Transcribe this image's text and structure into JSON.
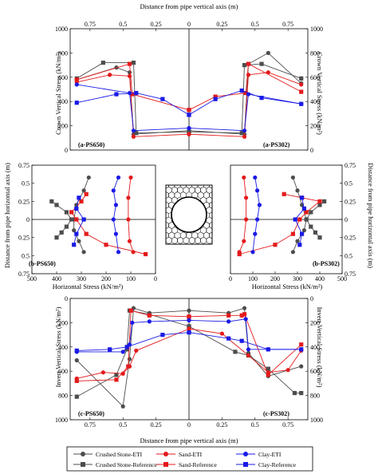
{
  "colors": {
    "Crushed Stone": "#4d4d4d",
    "Sand": "#e41a1c",
    "Clay": "#1a1ae6"
  },
  "labels": {
    "top_x": "Distance from pipe vertical axis (m)",
    "bottom_x": "Distance from pipe vertical axis (m)",
    "crown_y": "Crown Vertical Stress (kN/m²)",
    "horiz_y": "Distance from pipe horizontal axis (m)",
    "horiz_x": "Horizontal Stress (kN/m²)",
    "invert_y": "Invert Vertical Stress (kN/m²)",
    "ps650_a": "(a-PS650)",
    "ps302_a": "(a-PS302)",
    "ps650_b": "(b-PS650)",
    "ps302_b": "(b-PS302)",
    "ps650_c": "(c-PS650)",
    "ps302_c": "(c-PS302)"
  },
  "legend": [
    {
      "label": "Crushed Stone-ETI",
      "material": "Crushed Stone",
      "marker": "circle"
    },
    {
      "label": "Sand-ETI",
      "material": "Sand",
      "marker": "circle"
    },
    {
      "label": "Clay-ETI",
      "material": "Clay",
      "marker": "circle"
    },
    {
      "label": "Crushed Stone-Reference",
      "material": "Crushed Stone",
      "marker": "square"
    },
    {
      "label": "Sand-Reference",
      "material": "Sand",
      "marker": "square"
    },
    {
      "label": "Clay-Reference",
      "material": "Clay",
      "marker": "square"
    }
  ],
  "chart_data": [
    {
      "type": "line",
      "id": "crown",
      "x_ticks_left": [
        "0.75",
        "0.5",
        "0.25"
      ],
      "x_ticks_right": [
        "0.25",
        "0.5",
        "0.75"
      ],
      "y_ticks": [
        "0",
        "200",
        "400",
        "600",
        "800",
        "1000"
      ],
      "ylim": [
        0,
        1000
      ],
      "series": [
        {
          "name": "Crushed Stone-ETI",
          "left": [
            [
              0.85,
              580
            ],
            [
              0.55,
              680
            ],
            [
              0.45,
              640
            ],
            [
              0.42,
              130
            ],
            [
              0,
              160
            ]
          ],
          "right": [
            [
              0,
              160
            ],
            [
              0.42,
              130
            ],
            [
              0.45,
              710
            ],
            [
              0.6,
              800
            ],
            [
              0.85,
              550
            ]
          ]
        },
        {
          "name": "Crushed Stone-Reference",
          "left": [
            [
              0.85,
              590
            ],
            [
              0.65,
              720
            ],
            [
              0.42,
              720
            ],
            [
              0.4,
              140
            ],
            [
              0,
              150
            ]
          ],
          "right": [
            [
              0,
              150
            ],
            [
              0.4,
              140
            ],
            [
              0.42,
              700
            ],
            [
              0.55,
              710
            ],
            [
              0.85,
              590
            ]
          ]
        },
        {
          "name": "Sand-ETI",
          "left": [
            [
              0.85,
              560
            ],
            [
              0.6,
              620
            ],
            [
              0.45,
              610
            ],
            [
              0.42,
              110
            ],
            [
              0,
              130
            ]
          ],
          "right": [
            [
              0,
              130
            ],
            [
              0.42,
              110
            ],
            [
              0.45,
              620
            ],
            [
              0.6,
              640
            ],
            [
              0.85,
              540
            ]
          ]
        },
        {
          "name": "Sand-Reference",
          "left": [
            [
              0.85,
              580
            ],
            [
              0.45,
              710
            ],
            [
              0.43,
              460
            ],
            [
              0.0,
              330
            ]
          ],
          "right": [
            [
              0,
              330
            ],
            [
              0.2,
              440
            ],
            [
              0.43,
              470
            ],
            [
              0.45,
              710
            ],
            [
              0.85,
              480
            ]
          ]
        },
        {
          "name": "Clay-ETI",
          "left": [
            [
              0.85,
              540
            ],
            [
              0.45,
              470
            ],
            [
              0.42,
              160
            ],
            [
              0,
              180
            ]
          ],
          "right": [
            [
              0,
              180
            ],
            [
              0.42,
              160
            ],
            [
              0.45,
              460
            ],
            [
              0.85,
              380
            ]
          ]
        },
        {
          "name": "Clay-Reference",
          "left": [
            [
              0.85,
              390
            ],
            [
              0.55,
              460
            ],
            [
              0.4,
              470
            ],
            [
              0.2,
              420
            ],
            [
              0,
              290
            ]
          ],
          "right": [
            [
              0,
              290
            ],
            [
              0.2,
              420
            ],
            [
              0.4,
              490
            ],
            [
              0.55,
              430
            ],
            [
              0.85,
              380
            ]
          ]
        }
      ]
    },
    {
      "type": "line",
      "id": "horizontal",
      "x_ticks_left": [
        "500",
        "400",
        "300",
        "200",
        "100",
        "0"
      ],
      "x_ticks_right": [
        "0",
        "100",
        "200",
        "300",
        "400",
        "500"
      ],
      "y_ticks": [
        "0.75",
        "0.5",
        "0.25",
        "0",
        "0.25",
        "0.5",
        "0.75"
      ],
      "series": [
        {
          "name": "Crushed Stone-ETI",
          "left": [
            [
              270,
              0.58
            ],
            [
              290,
              0.4
            ],
            [
              320,
              0.2
            ],
            [
              330,
              0.0
            ],
            [
              330,
              -0.15
            ],
            [
              310,
              -0.3
            ],
            [
              290,
              -0.45
            ]
          ],
          "right": [
            [
              280,
              0.58
            ],
            [
              300,
              0.4
            ],
            [
              320,
              0.2
            ],
            [
              340,
              0.0
            ],
            [
              330,
              -0.15
            ],
            [
              300,
              -0.3
            ],
            [
              280,
              -0.45
            ]
          ]
        },
        {
          "name": "Crushed Stone-Reference",
          "left": [
            [
              420,
              0.25
            ],
            [
              400,
              0.2
            ],
            [
              360,
              0.1
            ],
            [
              340,
              0.0
            ],
            [
              360,
              -0.1
            ],
            [
              380,
              -0.18
            ],
            [
              400,
              -0.25
            ]
          ],
          "right": [
            [
              420,
              0.25
            ],
            [
              400,
              0.2
            ],
            [
              360,
              0.1
            ],
            [
              340,
              0.0
            ],
            [
              360,
              -0.1
            ],
            [
              380,
              -0.18
            ],
            [
              400,
              -0.25
            ]
          ]
        },
        {
          "name": "Sand-ETI",
          "left": [
            [
              100,
              0.58
            ],
            [
              110,
              0.3
            ],
            [
              110,
              0.0
            ],
            [
              105,
              -0.3
            ],
            [
              90,
              -0.45
            ]
          ],
          "right": [
            [
              60,
              0.58
            ],
            [
              70,
              0.3
            ],
            [
              70,
              0.0
            ],
            [
              60,
              -0.3
            ],
            [
              40,
              -0.45
            ]
          ]
        },
        {
          "name": "Sand-Reference",
          "left": [
            [
              280,
              0.35
            ],
            [
              300,
              0.25
            ],
            [
              340,
              0.1
            ],
            [
              320,
              0.0
            ],
            [
              280,
              -0.2
            ],
            [
              200,
              -0.35
            ],
            [
              40,
              -0.48
            ]
          ],
          "right": [
            [
              240,
              0.35
            ],
            [
              320,
              0.3
            ],
            [
              400,
              0.25
            ],
            [
              340,
              0.1
            ],
            [
              310,
              0.0
            ],
            [
              280,
              -0.2
            ],
            [
              200,
              -0.35
            ],
            [
              40,
              -0.48
            ]
          ]
        },
        {
          "name": "Clay-ETI",
          "left": [
            [
              150,
              0.58
            ],
            [
              170,
              0.4
            ],
            [
              160,
              0.2
            ],
            [
              170,
              0.0
            ],
            [
              160,
              -0.2
            ],
            [
              150,
              -0.45
            ]
          ],
          "right": [
            [
              110,
              0.58
            ],
            [
              120,
              0.4
            ],
            [
              130,
              0.2
            ],
            [
              120,
              0.0
            ],
            [
              110,
              -0.2
            ],
            [
              100,
              -0.45
            ]
          ]
        },
        {
          "name": "Clay-Reference",
          "left": [
            [
              310,
              0.3
            ],
            [
              320,
              0.15
            ],
            [
              290,
              0.0
            ],
            [
              320,
              -0.2
            ],
            [
              330,
              -0.35
            ]
          ],
          "right": [
            [
              320,
              0.3
            ],
            [
              330,
              0.15
            ],
            [
              290,
              0.0
            ],
            [
              320,
              -0.2
            ],
            [
              310,
              -0.35
            ]
          ]
        }
      ]
    },
    {
      "type": "line",
      "id": "invert",
      "x_ticks_left": [
        "0.75",
        "0.5",
        "0.25"
      ],
      "x_ticks_right": [
        "0.25",
        "0.5",
        "0.75"
      ],
      "y_ticks": [
        "0",
        "200",
        "400",
        "600",
        "800",
        "1000"
      ],
      "ylim": [
        1000,
        0
      ],
      "series": [
        {
          "name": "Crushed Stone-ETI",
          "left": [
            [
              0.85,
              510
            ],
            [
              0.5,
              890
            ],
            [
              0.45,
              500
            ],
            [
              0.42,
              80
            ],
            [
              0.3,
              120
            ],
            [
              0,
              100
            ]
          ],
          "right": [
            [
              0,
              100
            ],
            [
              0.3,
              120
            ],
            [
              0.42,
              80
            ],
            [
              0.45,
              450
            ],
            [
              0.6,
              640
            ],
            [
              0.85,
              560
            ]
          ]
        },
        {
          "name": "Crushed Stone-Reference",
          "left": [
            [
              0.85,
              810
            ],
            [
              0.55,
              630
            ],
            [
              0.47,
              420
            ],
            [
              0.45,
              100
            ],
            [
              0.3,
              130
            ],
            [
              0,
              230
            ]
          ],
          "right": [
            [
              0,
              230
            ],
            [
              0.35,
              440
            ],
            [
              0.45,
              470
            ],
            [
              0.6,
              580
            ],
            [
              0.8,
              780
            ],
            [
              0.85,
              780
            ]
          ]
        },
        {
          "name": "Sand-ETI",
          "left": [
            [
              0.85,
              660
            ],
            [
              0.65,
              610
            ],
            [
              0.5,
              620
            ],
            [
              0.45,
              560
            ],
            [
              0.4,
              430
            ],
            [
              0,
              250
            ]
          ],
          "right": [
            [
              0,
              250
            ],
            [
              0.25,
              290
            ],
            [
              0.45,
              470
            ],
            [
              0.6,
              610
            ],
            [
              0.75,
              590
            ],
            [
              0.85,
              430
            ]
          ]
        },
        {
          "name": "Sand-Reference",
          "left": [
            [
              0.85,
              680
            ],
            [
              0.55,
              670
            ],
            [
              0.46,
              560
            ],
            [
              0.44,
              100
            ],
            [
              0.3,
              140
            ],
            [
              0,
              150
            ]
          ],
          "right": [
            [
              0,
              150
            ],
            [
              0.3,
              140
            ],
            [
              0.4,
              140
            ],
            [
              0.42,
              130
            ],
            [
              0.6,
              630
            ],
            [
              0.85,
              380
            ]
          ]
        },
        {
          "name": "Clay-ETI",
          "left": [
            [
              0.85,
              440
            ],
            [
              0.5,
              440
            ],
            [
              0.45,
              380
            ],
            [
              0.43,
              200
            ],
            [
              0.3,
              190
            ],
            [
              0,
              180
            ]
          ],
          "right": [
            [
              0,
              180
            ],
            [
              0.3,
              190
            ],
            [
              0.43,
              170
            ],
            [
              0.45,
              420
            ],
            [
              0.6,
              420
            ],
            [
              0.85,
              420
            ]
          ]
        },
        {
          "name": "Clay-Reference",
          "left": [
            [
              0.85,
              430
            ],
            [
              0.6,
              420
            ],
            [
              0.47,
              400
            ],
            [
              0.2,
              300
            ],
            [
              0,
              280
            ]
          ],
          "right": [
            [
              0,
              280
            ],
            [
              0.3,
              330
            ],
            [
              0.4,
              350
            ],
            [
              0.6,
              420
            ],
            [
              0.85,
              420
            ]
          ]
        }
      ]
    }
  ]
}
